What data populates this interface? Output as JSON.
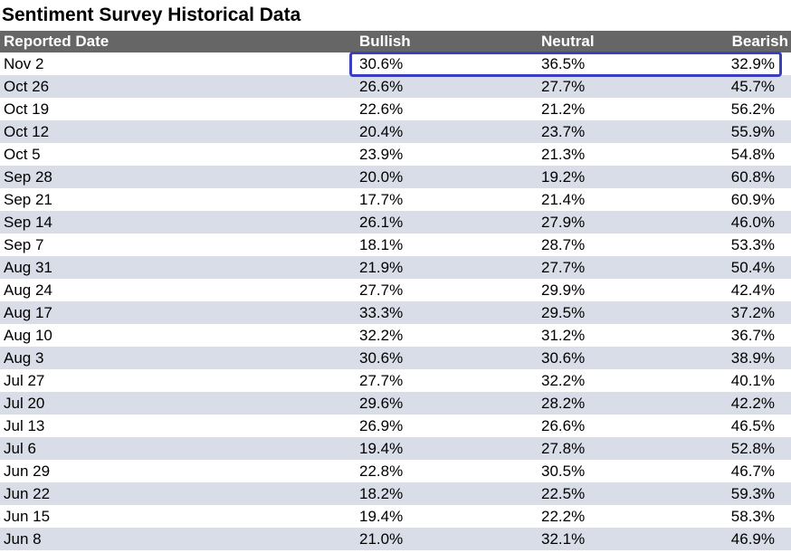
{
  "title": "Sentiment Survey Historical Data",
  "columns": {
    "date": "Reported Date",
    "bullish": "Bullish",
    "neutral": "Neutral",
    "bearish": "Bearish"
  },
  "rows": [
    {
      "date": "Nov 2",
      "bullish": "30.6%",
      "neutral": "36.5%",
      "bearish": "32.9%"
    },
    {
      "date": "Oct 26",
      "bullish": "26.6%",
      "neutral": "27.7%",
      "bearish": "45.7%"
    },
    {
      "date": "Oct 19",
      "bullish": "22.6%",
      "neutral": "21.2%",
      "bearish": "56.2%"
    },
    {
      "date": "Oct 12",
      "bullish": "20.4%",
      "neutral": "23.7%",
      "bearish": "55.9%"
    },
    {
      "date": "Oct 5",
      "bullish": "23.9%",
      "neutral": "21.3%",
      "bearish": "54.8%"
    },
    {
      "date": "Sep 28",
      "bullish": "20.0%",
      "neutral": "19.2%",
      "bearish": "60.8%"
    },
    {
      "date": "Sep 21",
      "bullish": "17.7%",
      "neutral": "21.4%",
      "bearish": "60.9%"
    },
    {
      "date": "Sep 14",
      "bullish": "26.1%",
      "neutral": "27.9%",
      "bearish": "46.0%"
    },
    {
      "date": "Sep 7",
      "bullish": "18.1%",
      "neutral": "28.7%",
      "bearish": "53.3%"
    },
    {
      "date": "Aug 31",
      "bullish": "21.9%",
      "neutral": "27.7%",
      "bearish": "50.4%"
    },
    {
      "date": "Aug 24",
      "bullish": "27.7%",
      "neutral": "29.9%",
      "bearish": "42.4%"
    },
    {
      "date": "Aug 17",
      "bullish": "33.3%",
      "neutral": "29.5%",
      "bearish": "37.2%"
    },
    {
      "date": "Aug 10",
      "bullish": "32.2%",
      "neutral": "31.2%",
      "bearish": "36.7%"
    },
    {
      "date": "Aug 3",
      "bullish": "30.6%",
      "neutral": "30.6%",
      "bearish": "38.9%"
    },
    {
      "date": "Jul 27",
      "bullish": "27.7%",
      "neutral": "32.2%",
      "bearish": "40.1%"
    },
    {
      "date": "Jul 20",
      "bullish": "29.6%",
      "neutral": "28.2%",
      "bearish": "42.2%"
    },
    {
      "date": "Jul 13",
      "bullish": "26.9%",
      "neutral": "26.6%",
      "bearish": "46.5%"
    },
    {
      "date": "Jul 6",
      "bullish": "19.4%",
      "neutral": "27.8%",
      "bearish": "52.8%"
    },
    {
      "date": "Jun 29",
      "bullish": "22.8%",
      "neutral": "30.5%",
      "bearish": "46.7%"
    },
    {
      "date": "Jun 22",
      "bullish": "18.2%",
      "neutral": "22.5%",
      "bearish": "59.3%"
    },
    {
      "date": "Jun 15",
      "bullish": "19.4%",
      "neutral": "22.2%",
      "bearish": "58.3%"
    },
    {
      "date": "Jun 8",
      "bullish": "21.0%",
      "neutral": "32.1%",
      "bearish": "46.9%"
    }
  ],
  "highlighted_row": 0,
  "colors": {
    "header_bg": "#666666",
    "header_text": "#ffffff",
    "alt_row_bg": "#d9dde8",
    "highlight_border": "#3a3fbf"
  }
}
